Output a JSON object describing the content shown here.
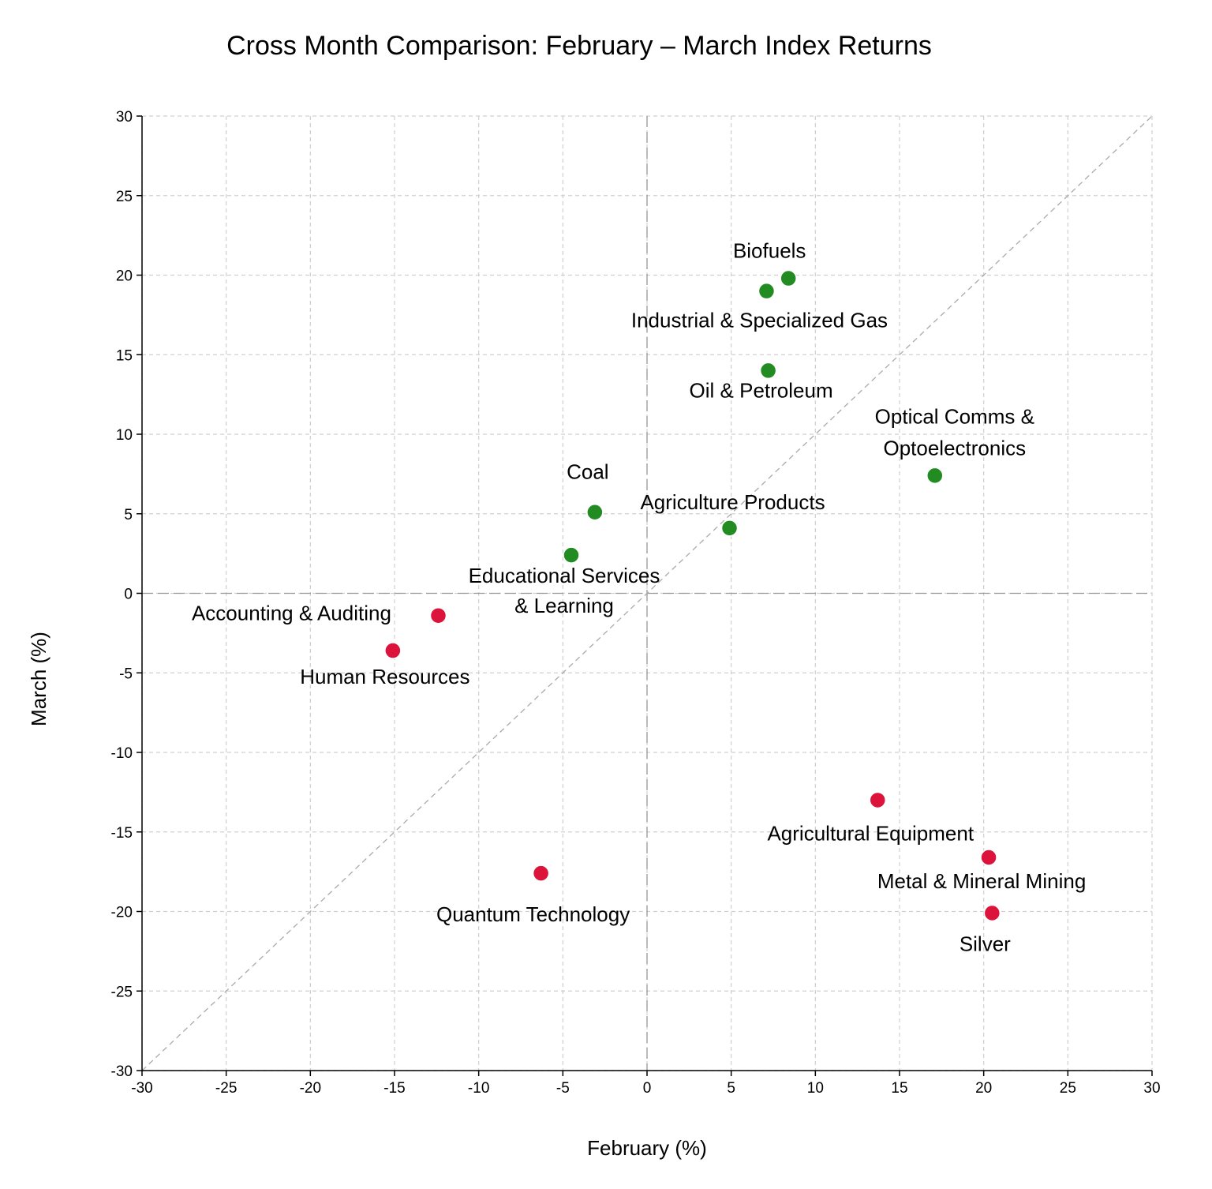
{
  "chart_data": {
    "type": "scatter",
    "title": "Cross Month Comparison: February – March Index Returns",
    "xlabel": "February (%)",
    "ylabel": "March (%)",
    "xlim": [
      -30,
      30
    ],
    "ylim": [
      -30,
      30
    ],
    "xticks": [
      -30,
      -25,
      -20,
      -15,
      -10,
      -5,
      0,
      5,
      10,
      15,
      20,
      25,
      30
    ],
    "yticks": [
      -30,
      -25,
      -20,
      -15,
      -10,
      -5,
      0,
      5,
      10,
      15,
      20,
      25,
      30
    ],
    "grid": true,
    "reference_line": "y = x",
    "colors": {
      "positive": "#228b22",
      "negative": "#dc143c"
    },
    "points": [
      {
        "name": "Biofuels",
        "x": 8.4,
        "y": 19.8
      },
      {
        "name": "Industrial & Specialized Gas",
        "x": 7.1,
        "y": 19.0
      },
      {
        "name": "Oil & Petroleum",
        "x": 7.2,
        "y": 14.0
      },
      {
        "name": "Optical Comms & Optoelectronics",
        "lines": [
          "Optical Comms &",
          "Optoelectronics"
        ],
        "x": 17.1,
        "y": 7.4
      },
      {
        "name": "Coal",
        "x": -3.1,
        "y": 5.1
      },
      {
        "name": "Agriculture Products",
        "x": 4.9,
        "y": 4.1
      },
      {
        "name": "Educational Services & Learning",
        "lines": [
          "Educational Services",
          "& Learning"
        ],
        "x": -4.5,
        "y": 2.4
      },
      {
        "name": "Accounting & Auditing",
        "x": -12.4,
        "y": -1.4
      },
      {
        "name": "Human Resources",
        "x": -15.1,
        "y": -3.6
      },
      {
        "name": "Quantum Technology",
        "x": -6.3,
        "y": -17.6
      },
      {
        "name": "Agricultural Equipment",
        "x": 13.7,
        "y": -13.0
      },
      {
        "name": "Metal & Mineral Mining",
        "x": 20.3,
        "y": -16.6
      },
      {
        "name": "Silver",
        "x": 20.5,
        "y": -20.1
      }
    ]
  }
}
